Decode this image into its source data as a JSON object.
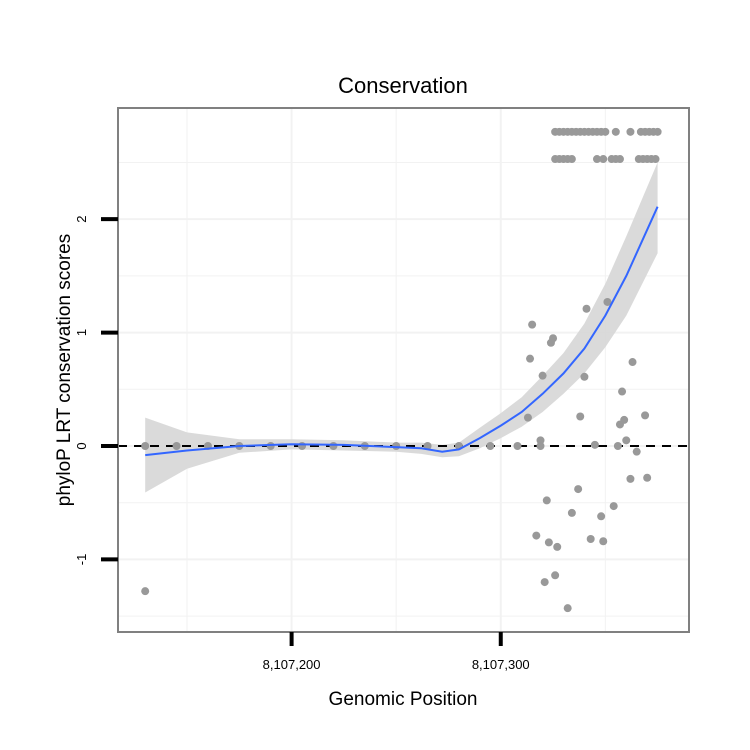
{
  "chart_data": {
    "type": "scatter",
    "title": "Conservation",
    "xlabel": "Genomic Position",
    "ylabel": "phyloP LRT conservation scores",
    "xlim": [
      8107117,
      8107390
    ],
    "ylim": [
      -1.64,
      2.98
    ],
    "x_ticks": [
      8107200,
      8107300
    ],
    "x_tick_labels": [
      "8,107,200",
      "8,107,300"
    ],
    "y_ticks": [
      -1,
      0,
      1,
      2
    ],
    "y_tick_labels": [
      "-1",
      "0",
      "1",
      "2"
    ],
    "grid": true,
    "reference_line_y": 0,
    "colors": {
      "points": "#999999",
      "smooth_line": "#3366ff",
      "ribbon": "#d6d6d6",
      "panel_border": "#808080",
      "gridline": "#f2f2f2"
    },
    "points": [
      {
        "x": 8107130,
        "y": -1.28
      },
      {
        "x": 8107130,
        "y": 0
      },
      {
        "x": 8107145,
        "y": 0
      },
      {
        "x": 8107160,
        "y": 0
      },
      {
        "x": 8107175,
        "y": 0
      },
      {
        "x": 8107190,
        "y": 0
      },
      {
        "x": 8107205,
        "y": 0
      },
      {
        "x": 8107220,
        "y": 0
      },
      {
        "x": 8107235,
        "y": 0
      },
      {
        "x": 8107250,
        "y": 0
      },
      {
        "x": 8107265,
        "y": 0
      },
      {
        "x": 8107280,
        "y": 0
      },
      {
        "x": 8107295,
        "y": 0
      },
      {
        "x": 8107308,
        "y": 0
      },
      {
        "x": 8107313,
        "y": 0.25
      },
      {
        "x": 8107314,
        "y": 0.77
      },
      {
        "x": 8107315,
        "y": 1.07
      },
      {
        "x": 8107317,
        "y": -0.79
      },
      {
        "x": 8107319,
        "y": 0.05
      },
      {
        "x": 8107319,
        "y": 0
      },
      {
        "x": 8107320,
        "y": 0.62
      },
      {
        "x": 8107321,
        "y": -1.2
      },
      {
        "x": 8107322,
        "y": -0.48
      },
      {
        "x": 8107323,
        "y": -0.85
      },
      {
        "x": 8107324,
        "y": 0.91
      },
      {
        "x": 8107325,
        "y": 0.95
      },
      {
        "x": 8107326,
        "y": -1.14
      },
      {
        "x": 8107327,
        "y": -0.89
      },
      {
        "x": 8107332,
        "y": -1.43
      },
      {
        "x": 8107334,
        "y": -0.59
      },
      {
        "x": 8107337,
        "y": -0.38
      },
      {
        "x": 8107338,
        "y": 0.26
      },
      {
        "x": 8107340,
        "y": 0.61
      },
      {
        "x": 8107341,
        "y": 1.21
      },
      {
        "x": 8107343,
        "y": -0.82
      },
      {
        "x": 8107345,
        "y": 0.01
      },
      {
        "x": 8107348,
        "y": -0.62
      },
      {
        "x": 8107349,
        "y": -0.84
      },
      {
        "x": 8107351,
        "y": 1.27
      },
      {
        "x": 8107354,
        "y": -0.53
      },
      {
        "x": 8107356,
        "y": 0
      },
      {
        "x": 8107357,
        "y": 0.19
      },
      {
        "x": 8107358,
        "y": 0.48
      },
      {
        "x": 8107359,
        "y": 0.23
      },
      {
        "x": 8107360,
        "y": 0.05
      },
      {
        "x": 8107362,
        "y": -0.29
      },
      {
        "x": 8107363,
        "y": 0.74
      },
      {
        "x": 8107365,
        "y": -0.05
      },
      {
        "x": 8107369,
        "y": 0.27
      },
      {
        "x": 8107370,
        "y": -0.28
      },
      {
        "x": 8107326,
        "y": 2.77
      },
      {
        "x": 8107328,
        "y": 2.77
      },
      {
        "x": 8107330,
        "y": 2.77
      },
      {
        "x": 8107332,
        "y": 2.77
      },
      {
        "x": 8107334,
        "y": 2.77
      },
      {
        "x": 8107336,
        "y": 2.77
      },
      {
        "x": 8107338,
        "y": 2.77
      },
      {
        "x": 8107340,
        "y": 2.77
      },
      {
        "x": 8107342,
        "y": 2.77
      },
      {
        "x": 8107344,
        "y": 2.77
      },
      {
        "x": 8107346,
        "y": 2.77
      },
      {
        "x": 8107348,
        "y": 2.77
      },
      {
        "x": 8107350,
        "y": 2.77
      },
      {
        "x": 8107355,
        "y": 2.77
      },
      {
        "x": 8107362,
        "y": 2.77
      },
      {
        "x": 8107367,
        "y": 2.77
      },
      {
        "x": 8107369,
        "y": 2.77
      },
      {
        "x": 8107371,
        "y": 2.77
      },
      {
        "x": 8107373,
        "y": 2.77
      },
      {
        "x": 8107375,
        "y": 2.77
      },
      {
        "x": 8107326,
        "y": 2.53
      },
      {
        "x": 8107328,
        "y": 2.53
      },
      {
        "x": 8107330,
        "y": 2.53
      },
      {
        "x": 8107332,
        "y": 2.53
      },
      {
        "x": 8107334,
        "y": 2.53
      },
      {
        "x": 8107346,
        "y": 2.53
      },
      {
        "x": 8107349,
        "y": 2.53
      },
      {
        "x": 8107353,
        "y": 2.53
      },
      {
        "x": 8107355,
        "y": 2.53
      },
      {
        "x": 8107357,
        "y": 2.53
      },
      {
        "x": 8107366,
        "y": 2.53
      },
      {
        "x": 8107368,
        "y": 2.53
      },
      {
        "x": 8107370,
        "y": 2.53
      },
      {
        "x": 8107372,
        "y": 2.53
      },
      {
        "x": 8107374,
        "y": 2.53
      }
    ],
    "smooth": {
      "x": [
        8107130,
        8107150,
        8107175,
        8107200,
        8107225,
        8107250,
        8107262,
        8107272,
        8107280,
        8107290,
        8107300,
        8107310,
        8107320,
        8107330,
        8107340,
        8107350,
        8107360,
        8107375
      ],
      "y": [
        -0.08,
        -0.04,
        0.0,
        0.015,
        0.01,
        -0.01,
        -0.02,
        -0.05,
        -0.03,
        0.07,
        0.18,
        0.3,
        0.46,
        0.64,
        0.86,
        1.15,
        1.5,
        2.11
      ],
      "lower": [
        -0.41,
        -0.2,
        -0.06,
        -0.03,
        -0.04,
        -0.05,
        -0.07,
        -0.1,
        -0.09,
        -0.02,
        0.07,
        0.17,
        0.3,
        0.46,
        0.64,
        0.87,
        1.15,
        1.7
      ],
      "upper": [
        0.25,
        0.12,
        0.06,
        0.06,
        0.05,
        0.03,
        0.03,
        0.01,
        0.03,
        0.16,
        0.29,
        0.43,
        0.62,
        0.82,
        1.08,
        1.43,
        1.85,
        2.5
      ]
    }
  }
}
